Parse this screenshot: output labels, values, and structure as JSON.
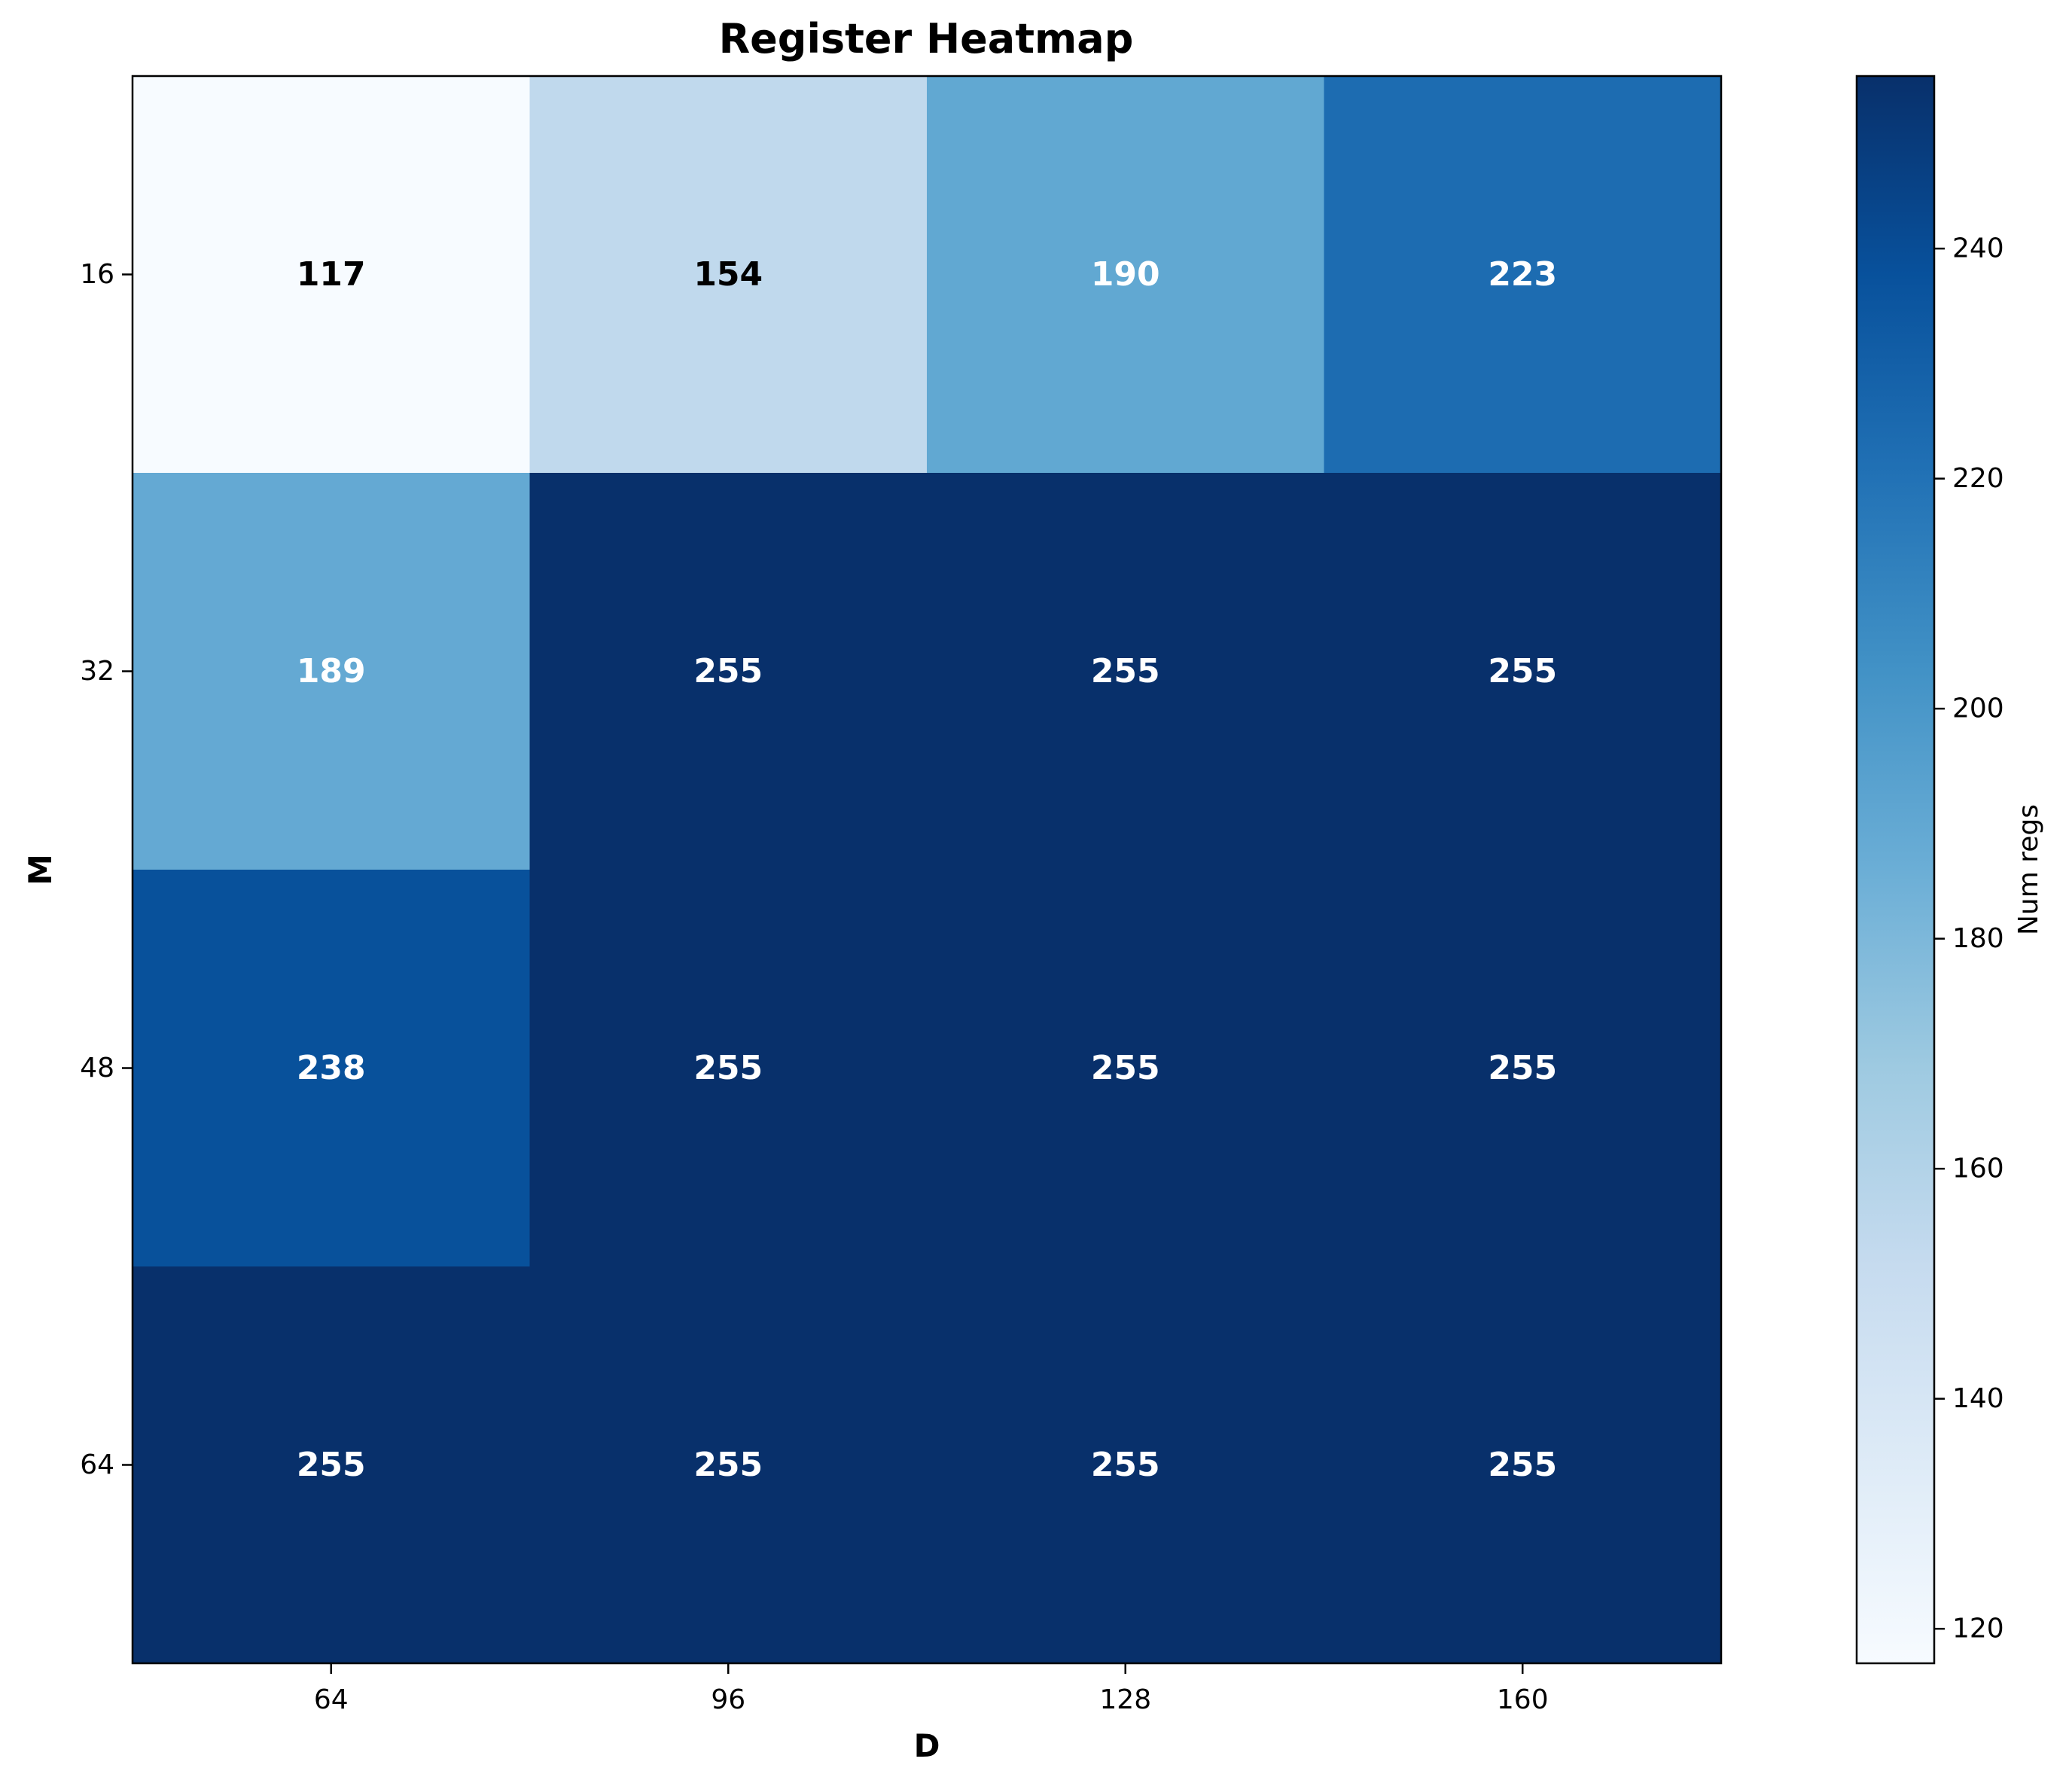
{
  "chart_data": {
    "type": "heatmap",
    "title": "Register Heatmap",
    "xlabel": "D",
    "ylabel": "M",
    "x_categories": [
      "64",
      "96",
      "128",
      "160"
    ],
    "y_categories": [
      "16",
      "32",
      "48",
      "64"
    ],
    "values": [
      [
        117,
        154,
        190,
        223
      ],
      [
        189,
        255,
        255,
        255
      ],
      [
        238,
        255,
        255,
        255
      ],
      [
        255,
        255,
        255,
        255
      ]
    ],
    "colormap": "Blues",
    "colorbar": {
      "label": "Num regs",
      "range": [
        117,
        255
      ],
      "ticks": [
        "120",
        "140",
        "160",
        "180",
        "200",
        "220",
        "240"
      ]
    },
    "annotation_colors": {
      "light_cell": "#000000",
      "dark_cell": "#ffffff"
    },
    "grid": false
  }
}
